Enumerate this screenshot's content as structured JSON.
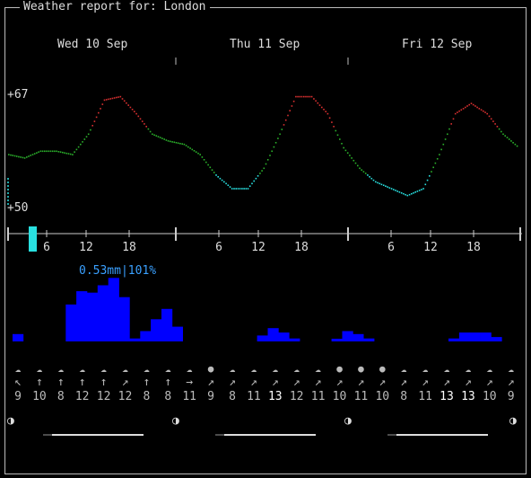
{
  "title": "Weather report for: London",
  "days": [
    "Wed 10 Sep",
    "Thu 11 Sep",
    "Fri 12 Sep"
  ],
  "temp_axis": {
    "max_label": "+67",
    "min_label": "+50"
  },
  "hour_ticks": [
    "6",
    "12",
    "18",
    "6",
    "12",
    "18",
    "6",
    "12",
    "18"
  ],
  "precip_label": "0.53mm|101%",
  "weather_icons": [
    "☁",
    "☁",
    "☁",
    "☁",
    "☁",
    "☁",
    "☁",
    "☁",
    "☁",
    "●",
    "☁",
    "☁",
    "☁",
    "☁",
    "☁",
    "●",
    "●",
    "●",
    "☁",
    "☁",
    "☁",
    "☁",
    "☁",
    "☁"
  ],
  "wind_arrows": [
    "↖",
    "↑",
    "↑",
    "↑",
    "↑",
    "↗",
    "↑",
    "↑",
    "→",
    "↗",
    "↗",
    "↗",
    "↗",
    "↗",
    "↗",
    "↗",
    "↗",
    "↗",
    "↗",
    "↗",
    "↗",
    "↗",
    "↗",
    "↗"
  ],
  "wind_speeds": [
    "9",
    "10",
    "8",
    "12",
    "12",
    "12",
    "8",
    "8",
    "11",
    "9",
    "8",
    "11",
    "13",
    "12",
    "11",
    "10",
    "11",
    "10",
    "8",
    "11",
    "13",
    "13",
    "10",
    "9"
  ],
  "moon_phase_icon": "◑",
  "colors": {
    "rain": "#0000ff",
    "cyan": "#29e0e0",
    "green": "#2bb02b",
    "red": "#d83030",
    "precip_text": "#3aa0ff"
  },
  "chart_data": {
    "type": "line",
    "ylim": [
      50,
      67
    ],
    "y_tick_labels": [
      "+67",
      "+50"
    ],
    "temperature": [
      58,
      57.5,
      58.5,
      58.5,
      58,
      61,
      66,
      66.5,
      64,
      61,
      60,
      59.5,
      58,
      55,
      53,
      53,
      56,
      61,
      66.5,
      66.5,
      64,
      59,
      56,
      54,
      53,
      52,
      53,
      58,
      64,
      65.5,
      64,
      61,
      59
    ],
    "precipitation": [
      0.05,
      0,
      0,
      0,
      0,
      0.25,
      0.34,
      0.33,
      0.38,
      0.43,
      0.3,
      0.02,
      0.07,
      0.15,
      0.22,
      0.1,
      0,
      0,
      0,
      0,
      0,
      0,
      0,
      0.04,
      0.09,
      0.06,
      0.02,
      0,
      0,
      0,
      0.01,
      0.07,
      0.05,
      0.02,
      0,
      0,
      0,
      0,
      0,
      0,
      0,
      0.02,
      0.06,
      0.06,
      0.06,
      0.03,
      0,
      0
    ]
  }
}
